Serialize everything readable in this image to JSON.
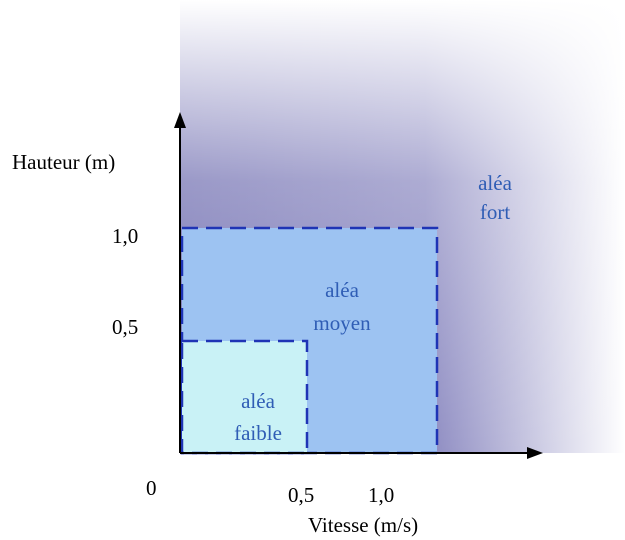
{
  "axes": {
    "y_label": "Hauteur (m)",
    "x_label": "Vitesse (m/s)",
    "origin": "0",
    "y_ticks": [
      "1,0",
      "0,5"
    ],
    "x_ticks": [
      "0,5",
      "1,0"
    ]
  },
  "zones": {
    "fort": {
      "line1": "aléa",
      "line2": "fort"
    },
    "moyen": {
      "line1": "aléa",
      "line2": "moyen"
    },
    "faible": {
      "line1": "aléa",
      "line2": "faible"
    }
  },
  "colors": {
    "fort_dark": "#7b78b6",
    "fort_light": "#ffffff",
    "moyen_fill": "#9dc3f2",
    "faible_fill": "#c9f2f6",
    "dash_stroke": "#1f34b5",
    "zone_text": "#2f5db5",
    "axis": "#000000"
  }
}
